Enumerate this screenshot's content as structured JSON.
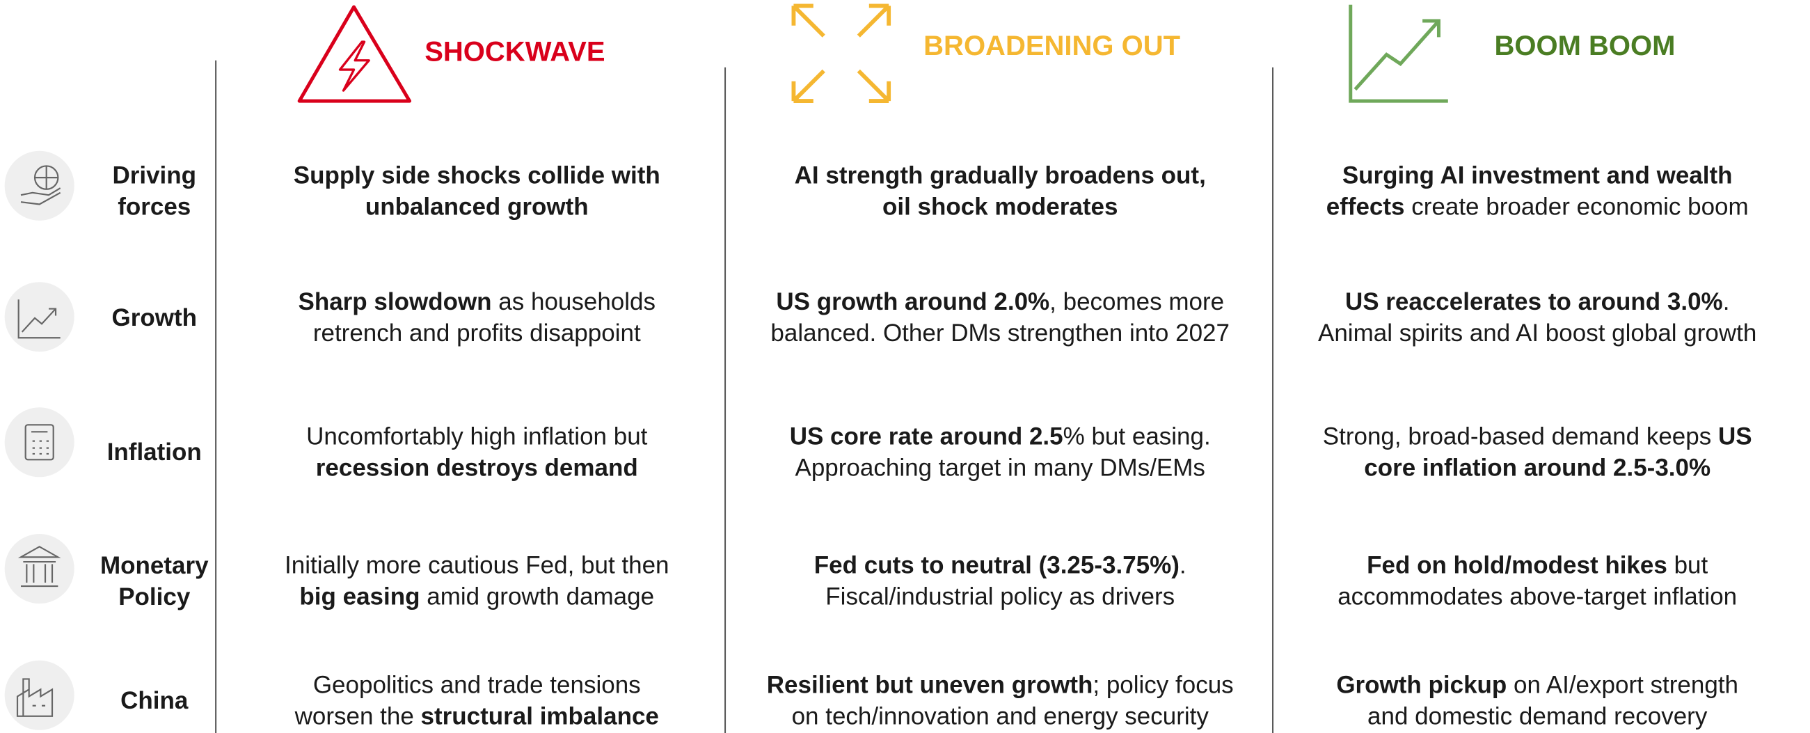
{
  "columns": [
    {
      "title": "SHOCKWAVE",
      "color": "#d9001b"
    },
    {
      "title": "BROADENING OUT",
      "color": "#f5b731"
    },
    {
      "title": "BOOM BOOM",
      "color": "#4a7d23"
    }
  ],
  "rows": [
    {
      "label": [
        "Driving",
        "forces"
      ],
      "cells": [
        [
          [
            {
              "text": "Supply side shocks collide with",
              "bold": true
            }
          ],
          [
            {
              "text": "unbalanced growth",
              "bold": true
            }
          ]
        ],
        [
          [
            {
              "text": "AI strength gradually broadens out,",
              "bold": true
            }
          ],
          [
            {
              "text": "oil shock moderates",
              "bold": true
            }
          ]
        ],
        [
          [
            {
              "text": "Surging AI investment and wealth",
              "bold": true
            }
          ],
          [
            {
              "text": "effects",
              "bold": true
            },
            {
              "text": " create broader economic boom",
              "bold": false
            }
          ]
        ]
      ]
    },
    {
      "label": [
        "Growth"
      ],
      "cells": [
        [
          [
            {
              "text": "Sharp slowdown",
              "bold": true
            },
            {
              "text": " as households",
              "bold": false
            }
          ],
          [
            {
              "text": "retrench and profits disappoint",
              "bold": false
            }
          ]
        ],
        [
          [
            {
              "text": "US growth around 2.0%",
              "bold": true
            },
            {
              "text": ", becomes more",
              "bold": false
            }
          ],
          [
            {
              "text": "balanced. Other DMs strengthen into 2027",
              "bold": false
            }
          ]
        ],
        [
          [
            {
              "text": "US reaccelerates to around 3.0%",
              "bold": true
            },
            {
              "text": ".",
              "bold": false
            }
          ],
          [
            {
              "text": "Animal spirits and AI boost global growth",
              "bold": false
            }
          ]
        ]
      ]
    },
    {
      "label": [
        "Inflation"
      ],
      "cells": [
        [
          [
            {
              "text": "Uncomfortably high inflation but",
              "bold": false
            }
          ],
          [
            {
              "text": "recession destroys demand",
              "bold": true
            }
          ]
        ],
        [
          [
            {
              "text": "US core rate around 2.5",
              "bold": true
            },
            {
              "text": "% but easing.",
              "bold": false
            }
          ],
          [
            {
              "text": "Approaching target in many DMs/EMs",
              "bold": false
            }
          ]
        ],
        [
          [
            {
              "text": "Strong, broad-based demand keeps ",
              "bold": false
            },
            {
              "text": "US",
              "bold": true
            }
          ],
          [
            {
              "text": "core inflation around 2.5-3.0%",
              "bold": true
            }
          ]
        ]
      ]
    },
    {
      "label": [
        "Monetary",
        "Policy"
      ],
      "cells": [
        [
          [
            {
              "text": "Initially more cautious Fed, but then",
              "bold": false
            }
          ],
          [
            {
              "text": "big easing",
              "bold": true
            },
            {
              "text": " amid growth damage",
              "bold": false
            }
          ]
        ],
        [
          [
            {
              "text": "Fed cuts to neutral (3.25-3.75%)",
              "bold": true
            },
            {
              "text": ".",
              "bold": false
            }
          ],
          [
            {
              "text": "Fiscal/industrial policy as drivers",
              "bold": false
            }
          ]
        ],
        [
          [
            {
              "text": "Fed on hold/modest hikes",
              "bold": true
            },
            {
              "text": " but",
              "bold": false
            }
          ],
          [
            {
              "text": "accommodates above-target inflation",
              "bold": false
            }
          ]
        ]
      ]
    },
    {
      "label": [
        "China"
      ],
      "cells": [
        [
          [
            {
              "text": "Geopolitics and trade tensions",
              "bold": false
            }
          ],
          [
            {
              "text": "worsen the ",
              "bold": false
            },
            {
              "text": "structural imbalance",
              "bold": true
            }
          ]
        ],
        [
          [
            {
              "text": "Resilient but uneven growth",
              "bold": true
            },
            {
              "text": "; policy focus",
              "bold": false
            }
          ],
          [
            {
              "text": "on tech/innovation and energy security",
              "bold": false
            }
          ]
        ],
        [
          [
            {
              "text": "Growth pickup",
              "bold": true
            },
            {
              "text": " on AI/export strength",
              "bold": false
            }
          ],
          [
            {
              "text": "and domestic demand recovery",
              "bold": false
            }
          ]
        ]
      ]
    }
  ]
}
